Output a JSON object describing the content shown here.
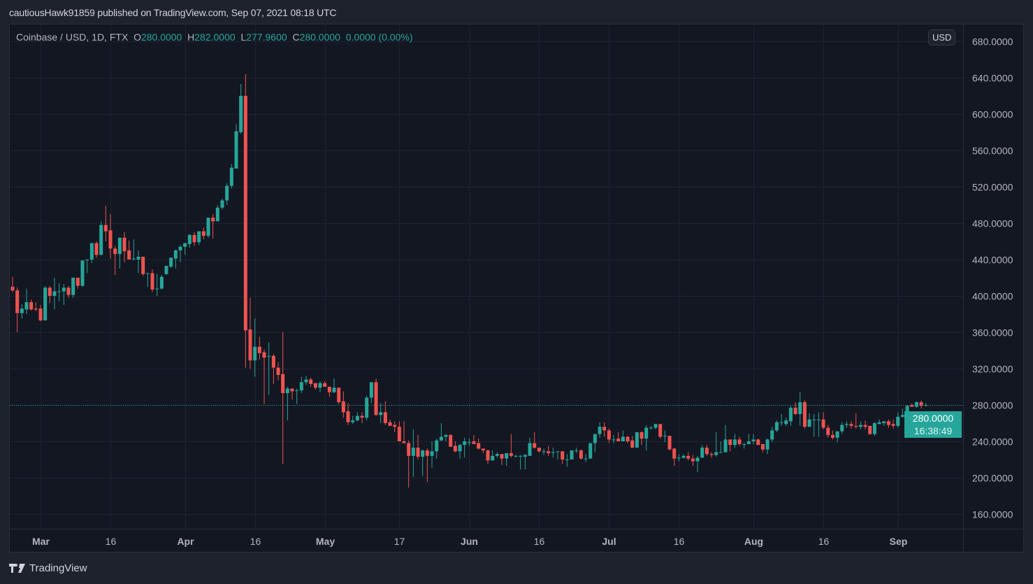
{
  "header": {
    "published": "cautiousHawk91859 published on TradingView.com, Sep 07, 2021 08:18 UTC"
  },
  "legend": {
    "symbol": "Coinbase / USD, 1D, FTX",
    "o_label": "O",
    "o": "280.0000",
    "h_label": "H",
    "h": "282.0000",
    "l_label": "L",
    "l": "277.9600",
    "c_label": "C",
    "c": "280.0000",
    "change": "0.0000 (0.00%)"
  },
  "currency_badge": "USD",
  "last_price": {
    "price": "280.0000",
    "countdown": "16:38:49"
  },
  "brand": "TradingView",
  "colors": {
    "up": "#26a69a",
    "down": "#ef5350",
    "background": "#131722",
    "grid": "#1f2330"
  },
  "chart_data": {
    "type": "candlestick",
    "title": "Coinbase / USD, 1D, FTX",
    "ylim": [
      145,
      690
    ],
    "y_ticks": [
      {
        "value": 680,
        "label": "680.0000"
      },
      {
        "value": 640,
        "label": "640.0000"
      },
      {
        "value": 600,
        "label": "600.0000"
      },
      {
        "value": 560,
        "label": "560.0000"
      },
      {
        "value": 520,
        "label": "520.0000"
      },
      {
        "value": 480,
        "label": "480.0000"
      },
      {
        "value": 440,
        "label": "440.0000"
      },
      {
        "value": 400,
        "label": "400.0000"
      },
      {
        "value": 360,
        "label": "360.0000"
      },
      {
        "value": 320,
        "label": "320.0000"
      },
      {
        "value": 280,
        "label": "280.0000"
      },
      {
        "value": 240,
        "label": "240.0000"
      },
      {
        "value": 200,
        "label": "200.0000"
      },
      {
        "value": 160,
        "label": "160.0000"
      }
    ],
    "x_ticks": [
      {
        "day": 0,
        "label": "Mar",
        "month": true
      },
      {
        "day": 15,
        "label": "16"
      },
      {
        "day": 31,
        "label": "Apr",
        "month": true
      },
      {
        "day": 46,
        "label": "16"
      },
      {
        "day": 61,
        "label": "May",
        "month": true
      },
      {
        "day": 77,
        "label": "17"
      },
      {
        "day": 92,
        "label": "Jun",
        "month": true
      },
      {
        "day": 107,
        "label": "16"
      },
      {
        "day": 122,
        "label": "Jul",
        "month": true
      },
      {
        "day": 137,
        "label": "16"
      },
      {
        "day": 153,
        "label": "Aug",
        "month": true
      },
      {
        "day": 168,
        "label": "16"
      },
      {
        "day": 184,
        "label": "Sep",
        "month": true
      }
    ],
    "last_candle_day": 190,
    "last_price": 280,
    "ohlc": [
      [
        410,
        421,
        404,
        406
      ],
      [
        406,
        409,
        360,
        381
      ],
      [
        381,
        391,
        375,
        386
      ],
      [
        385,
        408,
        380,
        393
      ],
      [
        393,
        396,
        384,
        385
      ],
      [
        386,
        393,
        383,
        385
      ],
      [
        386,
        390,
        372,
        373
      ],
      [
        373,
        411,
        373,
        409
      ],
      [
        409,
        411,
        392,
        400
      ],
      [
        400,
        420,
        385,
        405
      ],
      [
        405,
        414,
        394,
        405
      ],
      [
        405,
        413,
        390,
        409
      ],
      [
        409,
        411,
        398,
        401
      ],
      [
        401,
        420,
        398,
        420
      ],
      [
        420,
        420,
        408,
        411
      ],
      [
        411,
        439,
        410,
        439
      ],
      [
        439,
        440,
        425,
        440
      ],
      [
        440,
        458,
        436,
        458
      ],
      [
        458,
        460,
        442,
        445
      ],
      [
        445,
        482,
        445,
        478
      ],
      [
        478,
        499,
        460,
        471
      ],
      [
        472,
        490,
        441,
        452
      ],
      [
        452,
        455,
        423,
        446
      ],
      [
        446,
        464,
        430,
        464
      ],
      [
        464,
        470,
        437,
        449
      ],
      [
        450,
        461,
        440,
        440
      ],
      [
        441,
        462,
        439,
        441
      ],
      [
        440,
        450,
        425,
        443
      ],
      [
        443,
        443,
        422,
        424
      ],
      [
        425,
        425,
        410,
        425
      ],
      [
        425,
        429,
        404,
        407
      ],
      [
        408,
        424,
        400,
        408
      ],
      [
        408,
        423,
        407,
        421
      ],
      [
        424,
        433,
        423,
        433
      ],
      [
        432,
        442,
        431,
        442
      ],
      [
        441,
        451,
        430,
        450
      ],
      [
        450,
        456,
        437,
        454
      ],
      [
        454,
        458,
        445,
        458
      ],
      [
        457,
        468,
        453,
        467
      ],
      [
        467,
        470,
        455,
        459
      ],
      [
        459,
        471,
        456,
        471
      ],
      [
        471,
        475,
        462,
        466
      ],
      [
        466,
        486,
        464,
        486
      ],
      [
        486,
        490,
        463,
        482
      ],
      [
        482,
        500,
        482,
        497
      ],
      [
        497,
        507,
        495,
        505
      ],
      [
        505,
        524,
        500,
        521
      ],
      [
        521,
        545,
        518,
        541
      ],
      [
        540,
        589,
        540,
        581
      ],
      [
        580,
        633,
        578,
        620
      ],
      [
        620,
        644,
        321,
        362
      ],
      [
        363,
        398,
        320,
        329
      ],
      [
        329,
        375,
        311,
        344
      ],
      [
        344,
        355,
        330,
        337
      ],
      [
        338,
        341,
        281,
        332
      ],
      [
        334,
        349,
        291,
        334
      ],
      [
        334,
        336,
        303,
        321
      ],
      [
        321,
        327,
        307,
        313
      ],
      [
        314,
        360,
        215,
        293
      ],
      [
        293,
        300,
        263,
        298
      ],
      [
        298,
        298,
        286,
        295
      ],
      [
        296,
        298,
        281,
        296
      ],
      [
        296,
        311,
        293,
        305
      ],
      [
        305,
        312,
        302,
        308
      ],
      [
        308,
        310,
        300,
        303
      ],
      [
        304,
        304,
        297,
        299
      ],
      [
        299,
        306,
        294,
        304
      ],
      [
        304,
        306,
        300,
        300
      ],
      [
        300,
        300,
        289,
        294
      ],
      [
        294,
        309,
        293,
        299
      ],
      [
        299,
        299,
        281,
        283
      ],
      [
        284,
        295,
        266,
        272
      ],
      [
        273,
        282,
        258,
        261
      ],
      [
        261,
        268,
        259,
        263
      ],
      [
        263,
        272,
        262,
        268
      ],
      [
        268,
        272,
        260,
        266
      ],
      [
        266,
        290,
        263,
        288
      ],
      [
        288,
        305,
        282,
        305
      ],
      [
        305,
        309,
        268,
        269
      ],
      [
        269,
        282,
        260,
        272
      ],
      [
        272,
        284,
        258,
        260
      ],
      [
        261,
        264,
        257,
        257
      ],
      [
        258,
        262,
        250,
        256
      ],
      [
        256,
        262,
        240,
        240
      ],
      [
        240,
        262,
        238,
        238
      ],
      [
        238,
        241,
        189,
        224
      ],
      [
        224,
        253,
        201,
        233
      ],
      [
        233,
        247,
        220,
        223
      ],
      [
        223,
        231,
        202,
        230
      ],
      [
        230,
        232,
        195,
        224
      ],
      [
        224,
        240,
        211,
        229
      ],
      [
        229,
        243,
        221,
        241
      ],
      [
        241,
        260,
        240,
        245
      ],
      [
        245,
        248,
        240,
        247
      ],
      [
        247,
        248,
        234,
        234
      ],
      [
        235,
        240,
        228,
        229
      ],
      [
        229,
        237,
        221,
        236
      ],
      [
        236,
        244,
        222,
        240
      ],
      [
        239,
        243,
        235,
        239
      ],
      [
        240,
        247,
        237,
        237
      ],
      [
        238,
        243,
        231,
        232
      ],
      [
        232,
        232,
        227,
        230
      ],
      [
        230,
        231,
        215,
        219
      ],
      [
        219,
        230,
        219,
        224
      ],
      [
        224,
        228,
        222,
        226
      ],
      [
        226,
        226,
        214,
        221
      ],
      [
        221,
        227,
        213,
        227
      ],
      [
        227,
        248,
        222,
        224
      ],
      [
        224,
        225,
        222,
        224
      ],
      [
        224,
        225,
        209,
        224
      ],
      [
        223,
        226,
        209,
        225
      ],
      [
        224,
        244,
        224,
        238
      ],
      [
        238,
        250,
        232,
        233
      ],
      [
        233,
        233,
        228,
        229
      ],
      [
        229,
        232,
        225,
        229
      ],
      [
        229,
        235,
        224,
        227
      ],
      [
        228,
        233,
        222,
        228
      ],
      [
        229,
        229,
        220,
        229
      ],
      [
        229,
        229,
        215,
        220
      ],
      [
        220,
        226,
        212,
        220
      ],
      [
        220,
        230,
        220,
        230
      ],
      [
        230,
        233,
        227,
        230
      ],
      [
        230,
        231,
        220,
        221
      ],
      [
        221,
        226,
        217,
        221
      ],
      [
        221,
        238,
        221,
        238
      ],
      [
        238,
        248,
        228,
        248
      ],
      [
        248,
        261,
        244,
        256
      ],
      [
        256,
        261,
        245,
        252
      ],
      [
        252,
        254,
        238,
        242
      ],
      [
        242,
        247,
        238,
        242
      ],
      [
        243,
        250,
        240,
        240
      ],
      [
        240,
        252,
        240,
        245
      ],
      [
        245,
        246,
        238,
        240
      ],
      [
        241,
        246,
        233,
        233
      ],
      [
        233,
        250,
        233,
        250
      ],
      [
        250,
        251,
        236,
        243
      ],
      [
        243,
        258,
        230,
        255
      ],
      [
        255,
        257,
        253,
        255
      ],
      [
        255,
        259,
        253,
        259
      ],
      [
        259,
        259,
        243,
        245
      ],
      [
        246,
        252,
        239,
        246
      ],
      [
        246,
        246,
        230,
        231
      ],
      [
        232,
        233,
        213,
        221
      ],
      [
        222,
        226,
        218,
        222
      ],
      [
        222,
        226,
        221,
        224
      ],
      [
        224,
        228,
        219,
        221
      ],
      [
        221,
        225,
        213,
        218
      ],
      [
        218,
        224,
        206,
        222
      ],
      [
        222,
        236,
        222,
        233
      ],
      [
        233,
        236,
        224,
        226
      ],
      [
        226,
        228,
        222,
        225
      ],
      [
        225,
        250,
        223,
        228
      ],
      [
        228,
        240,
        228,
        228
      ],
      [
        228,
        258,
        228,
        242
      ],
      [
        242,
        242,
        229,
        236
      ],
      [
        236,
        248,
        233,
        242
      ],
      [
        242,
        245,
        235,
        237
      ],
      [
        237,
        238,
        232,
        237
      ],
      [
        237,
        248,
        237,
        240
      ],
      [
        240,
        248,
        237,
        242
      ],
      [
        242,
        243,
        236,
        236
      ],
      [
        237,
        237,
        228,
        231
      ],
      [
        231,
        243,
        226,
        242
      ],
      [
        242,
        256,
        239,
        252
      ],
      [
        252,
        263,
        250,
        261
      ],
      [
        261,
        270,
        257,
        261
      ],
      [
        259,
        266,
        257,
        263
      ],
      [
        262,
        279,
        257,
        277
      ],
      [
        277,
        283,
        269,
        270
      ],
      [
        270,
        294,
        257,
        283
      ],
      [
        283,
        285,
        254,
        256
      ],
      [
        256,
        271,
        256,
        264
      ],
      [
        264,
        270,
        245,
        264
      ],
      [
        264,
        272,
        245,
        264
      ],
      [
        264,
        272,
        253,
        255
      ],
      [
        255,
        258,
        244,
        247
      ],
      [
        247,
        252,
        242,
        244
      ],
      [
        244,
        251,
        239,
        251
      ],
      [
        251,
        261,
        248,
        258
      ],
      [
        258,
        262,
        255,
        259
      ],
      [
        259,
        262,
        254,
        257
      ],
      [
        257,
        271,
        254,
        256
      ],
      [
        256,
        262,
        253,
        258
      ],
      [
        258,
        263,
        253,
        256
      ],
      [
        257,
        257,
        247,
        248
      ],
      [
        248,
        261,
        246,
        260
      ],
      [
        259,
        264,
        259,
        261
      ],
      [
        260,
        262,
        257,
        262
      ],
      [
        262,
        264,
        255,
        258
      ],
      [
        259,
        264,
        254,
        257
      ],
      [
        257,
        272,
        255,
        267
      ],
      [
        267,
        276,
        266,
        269
      ],
      [
        269,
        280,
        268,
        279
      ],
      [
        280,
        282,
        278,
        278
      ],
      [
        278,
        284,
        277,
        283
      ],
      [
        283,
        285,
        276,
        279
      ],
      [
        280,
        282,
        277.96,
        280
      ]
    ]
  }
}
